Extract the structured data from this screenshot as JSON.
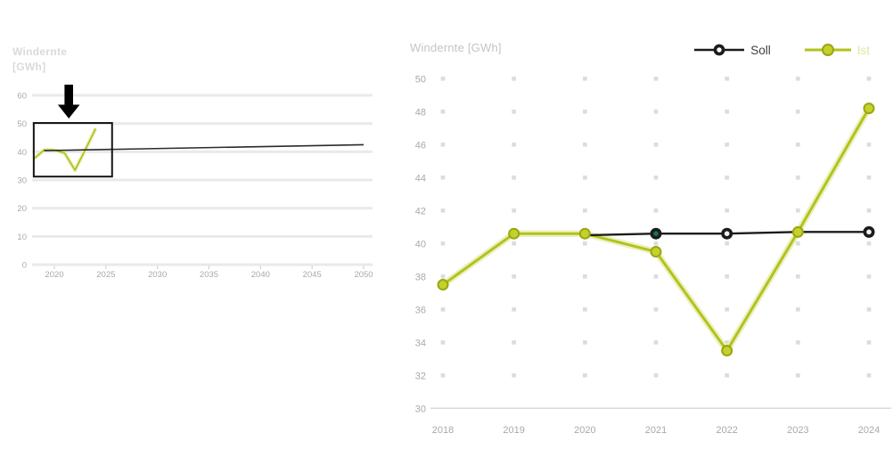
{
  "colors": {
    "soll_line": "#1c1c1c",
    "ist_line": "#b2c31a",
    "ist_halo": "#ecf0c4",
    "ist_marker_fill": "#c4d12b",
    "ist_marker_edge": "#98a711",
    "grid_band": "#e9e9e9",
    "grid_dot": "#dcdcdc",
    "baseline": "#dadada",
    "axis_text": "#a9a9a9",
    "overview_title_text": "#dadada",
    "detail_title_text": "#c2c6bf",
    "legend_soll_text": "#3f3f3f",
    "legend_ist_text": "#dce9a0",
    "box_stroke": "#151515",
    "arrow_fill": "#000000"
  },
  "legend": {
    "soll": "Soll",
    "ist": "Ist"
  },
  "chart_data": [
    {
      "id": "overview",
      "type": "line",
      "title": "Windernte [GWh]",
      "title_lines": [
        "Windernte",
        "[GWh]"
      ],
      "xlabel": "",
      "ylabel": "",
      "x_ticks": [
        2020,
        2025,
        2030,
        2035,
        2040,
        2045,
        2050
      ],
      "y_ticks": [
        0,
        10,
        20,
        30,
        40,
        50,
        60
      ],
      "xlim": [
        2018,
        2051
      ],
      "ylim": [
        0,
        60
      ],
      "grid": "horizontal-bands",
      "legend_position": "none",
      "series": [
        {
          "name": "Soll",
          "x": [
            2019,
            2050
          ],
          "values": [
            40.4,
            42.5
          ]
        },
        {
          "name": "Ist",
          "x": [
            2018,
            2019,
            2020,
            2021,
            2022,
            2023,
            2024
          ],
          "values": [
            37.5,
            40.6,
            40.6,
            39.5,
            33.5,
            40.7,
            48.2
          ]
        }
      ],
      "annotations": {
        "zoom_box": {
          "x0": 2018,
          "x1": 2025.6,
          "y0": 31.2,
          "y1": 50.2
        },
        "arrow": {
          "x": 2021.4,
          "direction": "down"
        }
      }
    },
    {
      "id": "detail",
      "type": "line",
      "title": "Windernte [GWh]",
      "xlabel": "",
      "ylabel": "",
      "x_ticks": [
        2018,
        2019,
        2020,
        2021,
        2022,
        2023,
        2024
      ],
      "y_ticks": [
        50,
        48,
        46,
        44,
        42,
        40,
        38,
        36,
        34,
        32,
        30
      ],
      "grid_y_values": [
        32,
        34,
        36,
        38,
        40,
        42,
        44,
        46,
        48,
        50
      ],
      "xlim": [
        2018,
        2024
      ],
      "ylim": [
        30,
        50
      ],
      "grid": "dot-grid",
      "legend_position": "top-right",
      "series": [
        {
          "name": "Soll",
          "x": [
            2020,
            2021,
            2022,
            2023,
            2024
          ],
          "values": [
            40.5,
            40.6,
            40.6,
            40.7,
            40.7
          ],
          "marker_center_colors": {
            "2021": "#16705d",
            "default": "#f2f2f2"
          }
        },
        {
          "name": "Ist",
          "x": [
            2018,
            2019,
            2020,
            2021,
            2022,
            2023,
            2024
          ],
          "values": [
            37.5,
            40.6,
            40.6,
            39.5,
            33.5,
            40.7,
            48.2
          ]
        }
      ]
    }
  ]
}
